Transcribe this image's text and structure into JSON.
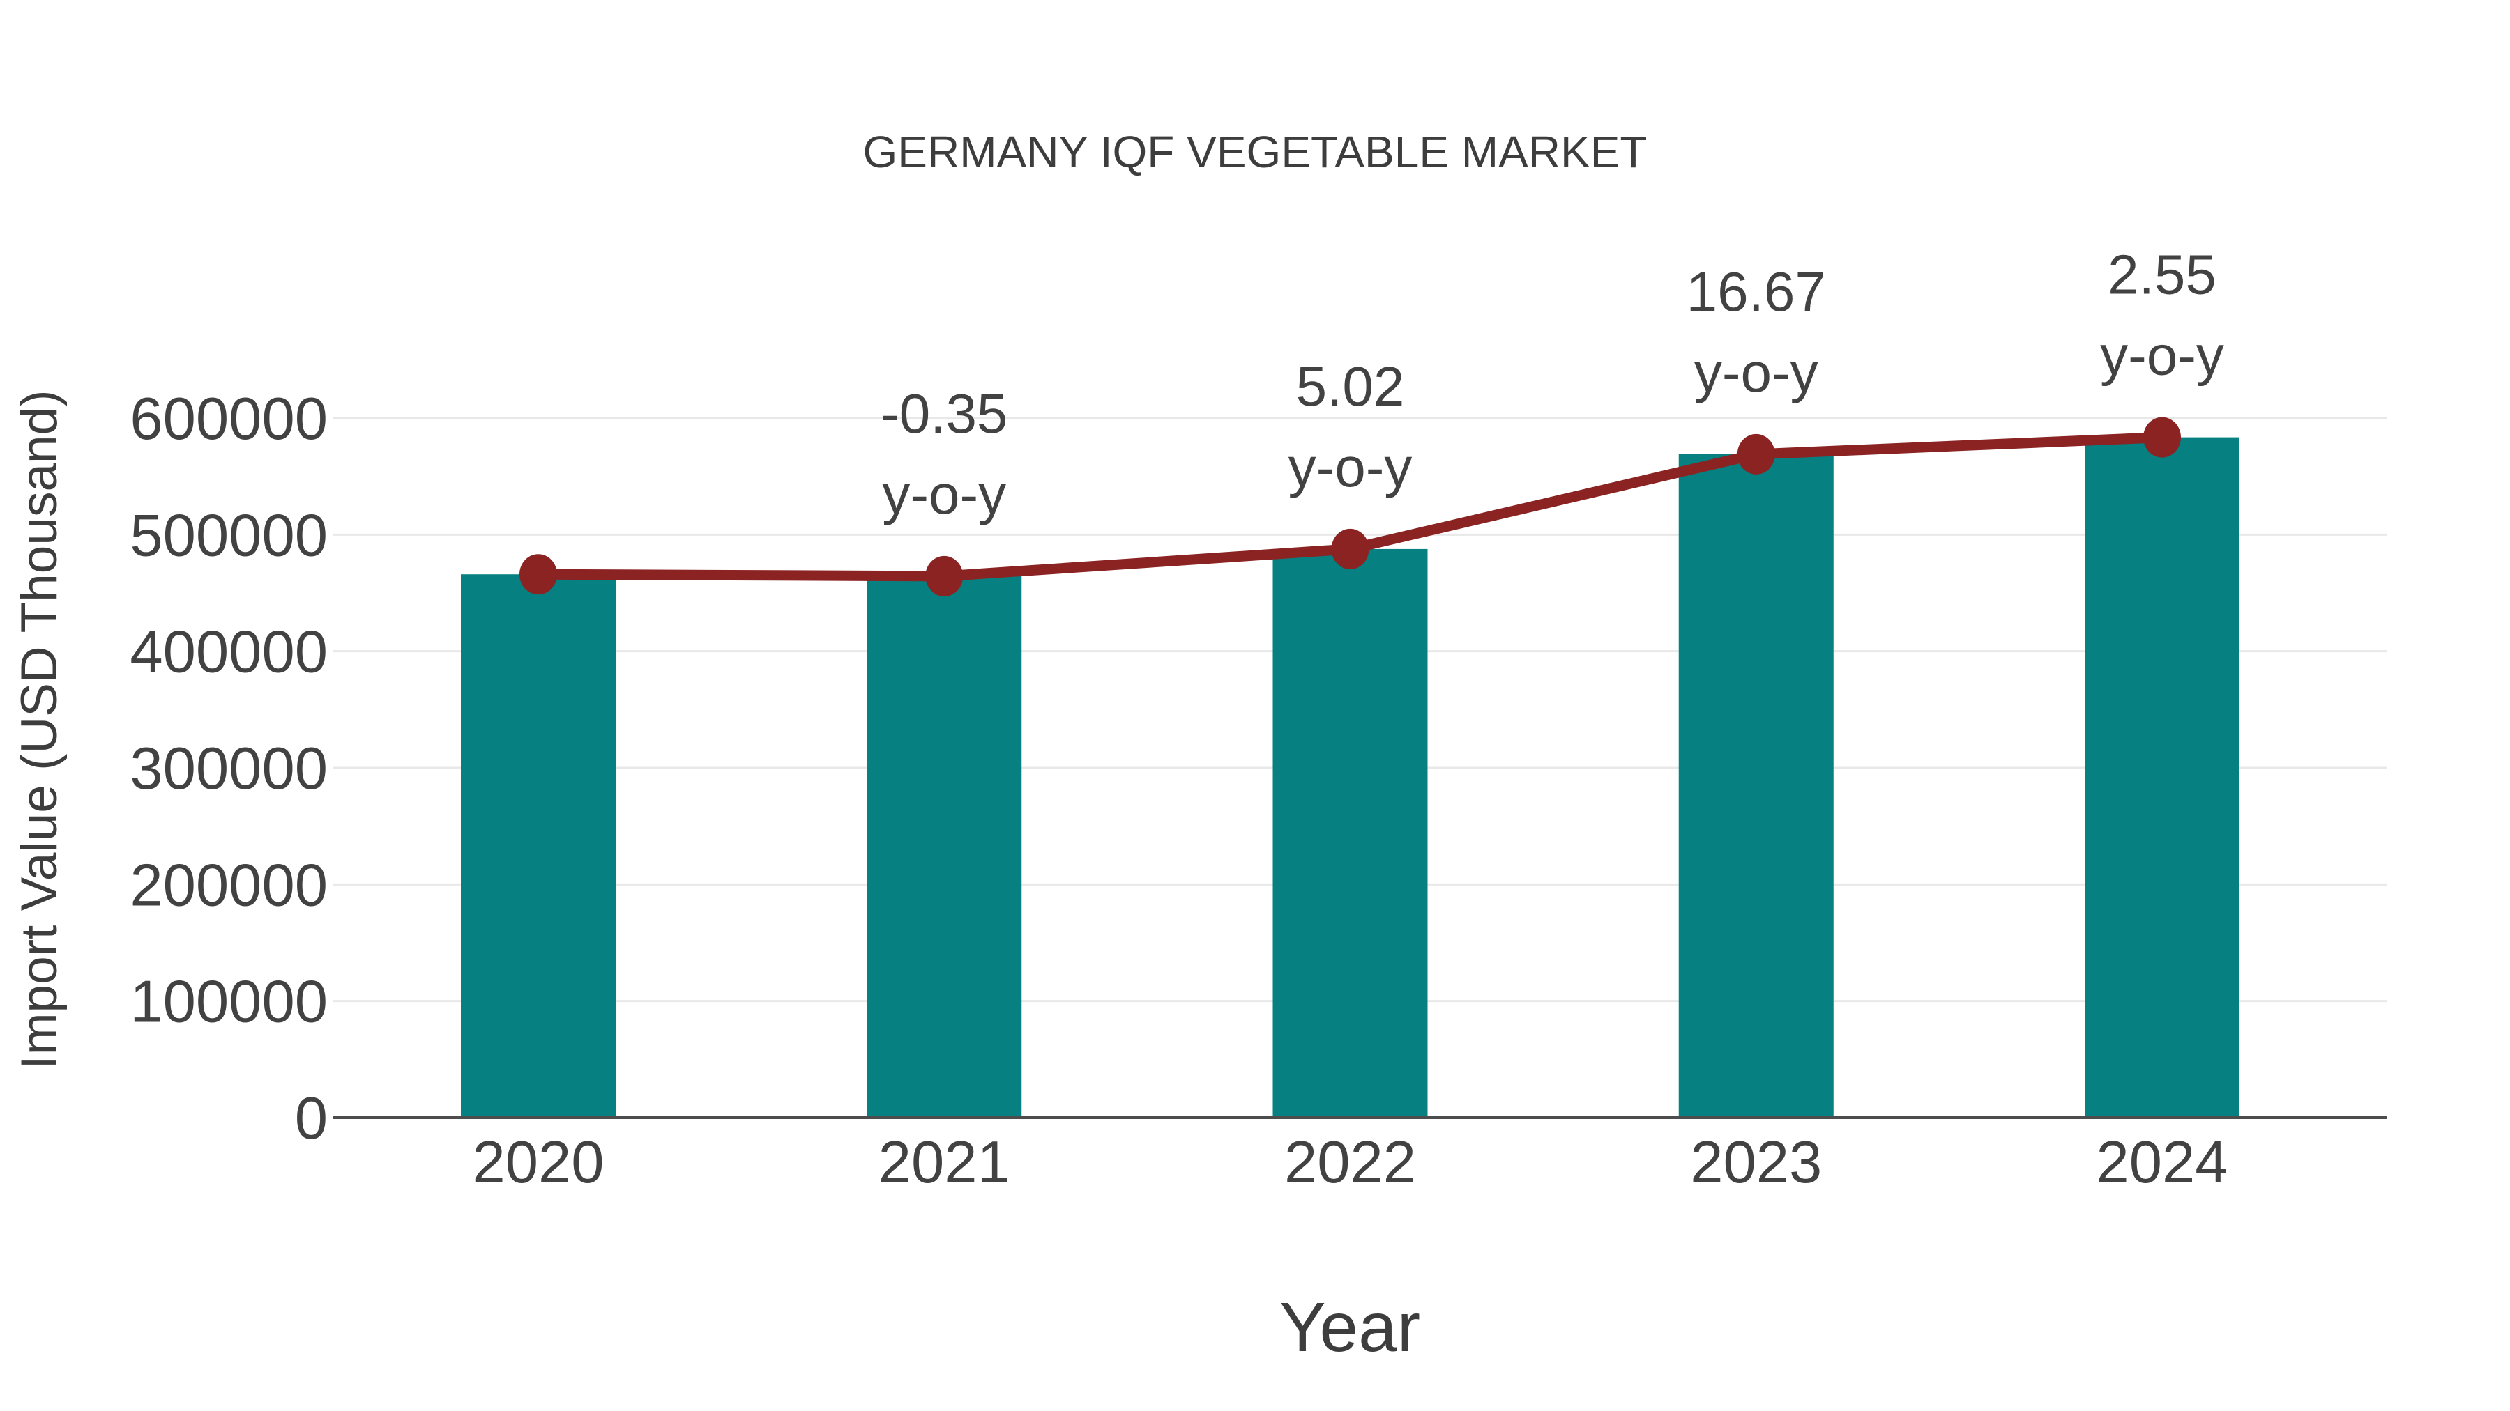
{
  "title": "GERMANY IQF VEGETABLE MARKET",
  "chart_data": {
    "type": "bar",
    "title": "GERMANY IQF VEGETABLE MARKET",
    "xlabel": "Year",
    "ylabel": "Import Value (USD Thousand)",
    "categories": [
      "2020",
      "2021",
      "2022",
      "2023",
      "2024"
    ],
    "series": [
      {
        "name": "Import Value bars",
        "type": "bar",
        "values": [
          466000,
          464400,
          487700,
          569000,
          583500
        ]
      },
      {
        "name": "Import Value trend line",
        "type": "line",
        "values": [
          466000,
          464400,
          487700,
          569000,
          583500
        ]
      }
    ],
    "annotations": [
      {
        "category": "2021",
        "label": "-0.35",
        "sublabel": "y-o-y"
      },
      {
        "category": "2022",
        "label": "5.02",
        "sublabel": "y-o-y"
      },
      {
        "category": "2023",
        "label": "16.67",
        "sublabel": "y-o-y"
      },
      {
        "category": "2024",
        "label": "2.55",
        "sublabel": "y-o-y"
      }
    ],
    "ylim": [
      0,
      600000
    ],
    "yticks": [
      0,
      100000,
      200000,
      300000,
      400000,
      500000,
      600000
    ],
    "grid": true,
    "legend_position": "none"
  },
  "colors": {
    "bar": "#068080",
    "line": "#8b2323",
    "marker": "#8b2323",
    "grid": "#e8e8e8",
    "axis": "#4d4d4d",
    "text": "#424242",
    "title_text": "#3d3d3d",
    "background": "#ffffff"
  }
}
